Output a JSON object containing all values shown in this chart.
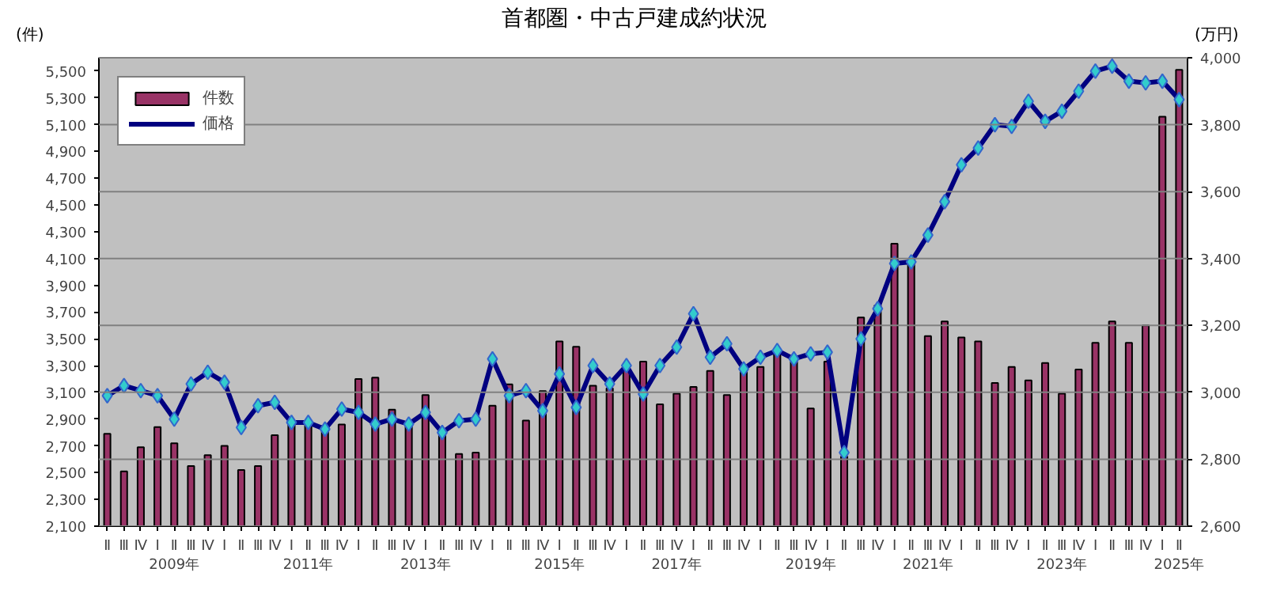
{
  "chart_data": {
    "type": "bar",
    "title": "首都圏・中古戸建成約状況",
    "ylabel": "(件)",
    "y2label": "(万円)",
    "categories": [
      "Ⅱ",
      "Ⅲ",
      "Ⅳ",
      "Ⅰ",
      "Ⅱ\n2009年",
      "Ⅲ",
      "Ⅳ",
      "Ⅰ",
      "Ⅱ",
      "Ⅲ",
      "Ⅳ",
      "Ⅰ",
      "Ⅱ\n2011年",
      "Ⅲ",
      "Ⅳ",
      "Ⅰ",
      "Ⅱ",
      "Ⅲ",
      "Ⅳ",
      "Ⅰ\n2013年",
      "Ⅱ",
      "Ⅲ",
      "Ⅳ",
      "Ⅰ",
      "Ⅱ",
      "Ⅲ",
      "Ⅳ",
      "Ⅰ\n2015年",
      "Ⅱ",
      "Ⅲ",
      "Ⅳ",
      "Ⅰ",
      "Ⅱ",
      "Ⅲ",
      "Ⅳ\n2017年",
      "Ⅰ",
      "Ⅱ",
      "Ⅲ",
      "Ⅳ",
      "Ⅰ",
      "Ⅱ",
      "Ⅲ",
      "Ⅳ\n2019年",
      "Ⅰ",
      "Ⅱ",
      "Ⅲ",
      "Ⅳ",
      "Ⅰ",
      "Ⅱ",
      "Ⅲ\n2021年",
      "Ⅳ",
      "Ⅰ",
      "Ⅱ",
      "Ⅲ",
      "Ⅳ",
      "Ⅰ",
      "Ⅱ",
      "Ⅲ\n2023年",
      "Ⅳ",
      "Ⅰ",
      "Ⅱ",
      "Ⅲ",
      "Ⅳ",
      "Ⅰ",
      "Ⅱ\n2025年"
    ],
    "series": [
      {
        "name": "件数",
        "color": "#993366",
        "values": [
          2790,
          2510,
          2690,
          2840,
          2720,
          2550,
          2630,
          2700,
          2520,
          2550,
          2780,
          2870,
          2880,
          2850,
          2860,
          3200,
          3210,
          2970,
          2850,
          3080,
          2780,
          2640,
          2650,
          3000,
          3160,
          2890,
          3110,
          3480,
          3440,
          3150,
          3130,
          3270,
          3330,
          3010,
          3090,
          3140,
          3260,
          3080,
          3280,
          3290,
          3390,
          3330,
          2980,
          3330,
          2620,
          3660,
          3750,
          4210,
          4070,
          3520,
          3630,
          3510,
          3480,
          3170,
          3290,
          3190,
          3320,
          3090,
          3270,
          3470,
          3630,
          3470,
          3600,
          5160,
          5510
        ]
      },
      {
        "name": "価格",
        "type": "line",
        "axis": "y2",
        "color": "#000080",
        "marker": "diamond",
        "values": [
          2990,
          3020,
          3005,
          2990,
          2920,
          3025,
          3060,
          3030,
          2895,
          2960,
          2970,
          2910,
          2910,
          2890,
          2950,
          2940,
          2905,
          2920,
          2905,
          2940,
          2880,
          2915,
          2920,
          3100,
          2990,
          3005,
          2945,
          3055,
          2955,
          3080,
          3025,
          3080,
          2995,
          3080,
          3135,
          3235,
          3105,
          3145,
          3070,
          3105,
          3125,
          3100,
          3115,
          3120,
          2820,
          3160,
          3250,
          3385,
          3390,
          3470,
          3570,
          3680,
          3730,
          3800,
          3795,
          3870,
          3810,
          3840,
          3900,
          3960,
          3975,
          3930,
          3925,
          3930,
          3875
        ]
      }
    ],
    "ylim": [
      2100,
      5600
    ],
    "yticks": [
      {
        "value": 2100,
        "label": "2,100"
      },
      {
        "value": 2300,
        "label": "2,300"
      },
      {
        "value": 2500,
        "label": "2,500"
      },
      {
        "value": 2700,
        "label": "2,700"
      },
      {
        "value": 2900,
        "label": "2,900"
      },
      {
        "value": 3100,
        "label": "3,100"
      },
      {
        "value": 3300,
        "label": "3,300"
      },
      {
        "value": 3500,
        "label": "3,500"
      },
      {
        "value": 3700,
        "label": "3,700"
      },
      {
        "value": 3900,
        "label": "3,900"
      },
      {
        "value": 4100,
        "label": "4,100"
      },
      {
        "value": 4300,
        "label": "4,300"
      },
      {
        "value": 4500,
        "label": "4,500"
      },
      {
        "value": 4700,
        "label": "4,700"
      },
      {
        "value": 4900,
        "label": "4,900"
      },
      {
        "value": 5100,
        "label": "5,100"
      },
      {
        "value": 5300,
        "label": "5,300"
      },
      {
        "value": 5500,
        "label": "5,500"
      }
    ],
    "y2lim": [
      2600,
      4000
    ],
    "y2ticks": [
      {
        "value": 2600,
        "label": "2,600"
      },
      {
        "value": 2800,
        "label": "2,800"
      },
      {
        "value": 3000,
        "label": "3,000"
      },
      {
        "value": 3200,
        "label": "3,200"
      },
      {
        "value": 3400,
        "label": "3,400"
      },
      {
        "value": 3600,
        "label": "3,600"
      },
      {
        "value": 3800,
        "label": "3,800"
      },
      {
        "value": 4000,
        "label": "4,000"
      }
    ],
    "grid": "y",
    "legend": "top left"
  }
}
